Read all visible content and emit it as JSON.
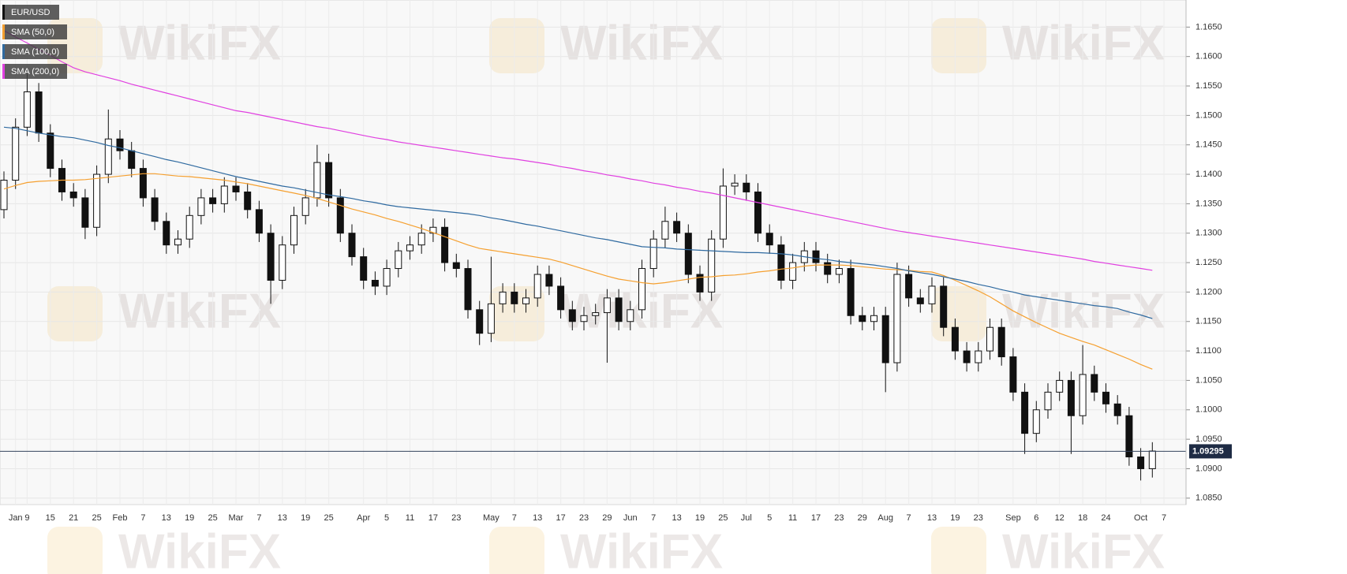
{
  "chart_data": {
    "type": "candlestick",
    "name": "EUR/USD",
    "color": "#111111",
    "up_color": "#ffffff",
    "legend": "top-left",
    "grid": true,
    "watermark": "WikiFX",
    "categories": [
      null,
      "Jan",
      "9",
      null,
      "15",
      null,
      "21",
      null,
      "25",
      null,
      "Feb",
      null,
      "7",
      null,
      "13",
      null,
      "19",
      null,
      "25",
      null,
      "Mar",
      null,
      "7",
      null,
      "13",
      null,
      "19",
      null,
      "25",
      null,
      null,
      "Apr",
      null,
      "5",
      null,
      "11",
      null,
      "17",
      null,
      "23",
      null,
      null,
      "May",
      null,
      "7",
      null,
      "13",
      null,
      "17",
      null,
      "23",
      null,
      "29",
      null,
      "Jun",
      null,
      "7",
      null,
      "13",
      null,
      "19",
      null,
      "25",
      null,
      "Jul",
      null,
      "5",
      null,
      "11",
      null,
      "17",
      null,
      "23",
      null,
      "29",
      null,
      "Aug",
      null,
      "7",
      null,
      "13",
      null,
      "19",
      null,
      "23",
      null,
      null,
      "Sep",
      null,
      "6",
      null,
      "12",
      null,
      "18",
      null,
      "24",
      null,
      null,
      "Oct",
      null,
      "7"
    ],
    "open": [
      1.134,
      1.139,
      1.148,
      1.154,
      1.147,
      1.141,
      1.137,
      1.136,
      1.131,
      1.14,
      1.146,
      1.144,
      1.141,
      1.136,
      1.132,
      1.128,
      1.129,
      1.133,
      1.136,
      1.135,
      1.138,
      1.137,
      1.134,
      1.13,
      1.122,
      1.128,
      1.133,
      1.136,
      1.142,
      1.136,
      1.13,
      1.126,
      1.122,
      1.121,
      1.124,
      1.127,
      1.128,
      1.13,
      1.131,
      1.125,
      1.124,
      1.117,
      1.113,
      1.118,
      1.12,
      1.118,
      1.119,
      1.123,
      1.121,
      1.117,
      1.115,
      1.116,
      1.1165,
      1.119,
      1.115,
      1.117,
      1.124,
      1.129,
      1.132,
      1.13,
      1.123,
      1.12,
      1.129,
      1.138,
      1.1385,
      1.137,
      1.13,
      1.128,
      1.122,
      1.125,
      1.127,
      1.125,
      1.123,
      1.124,
      1.116,
      1.115,
      1.116,
      1.108,
      1.123,
      1.119,
      1.118,
      1.121,
      1.114,
      1.11,
      1.108,
      1.11,
      1.114,
      1.109,
      1.103,
      1.096,
      1.1,
      1.103,
      1.105,
      1.099,
      1.106,
      1.103,
      1.101,
      1.099,
      1.092,
      1.09,
      null
    ],
    "high": [
      1.1405,
      1.1495,
      1.157,
      1.1555,
      1.1485,
      1.1425,
      1.1385,
      1.1375,
      1.1415,
      1.151,
      1.1475,
      1.1455,
      1.1425,
      1.1375,
      1.1335,
      1.1305,
      1.1345,
      1.1375,
      1.1375,
      1.1395,
      1.1395,
      1.1385,
      1.1355,
      1.1315,
      1.1295,
      1.1345,
      1.1375,
      1.145,
      1.1435,
      1.1375,
      1.1315,
      1.1275,
      1.1235,
      1.1255,
      1.1285,
      1.1295,
      1.1315,
      1.1325,
      1.1325,
      1.1265,
      1.1255,
      1.1185,
      1.126,
      1.1215,
      1.1215,
      1.1205,
      1.1245,
      1.1245,
      1.1225,
      1.1185,
      1.1175,
      1.118,
      1.1205,
      1.1205,
      1.1185,
      1.1255,
      1.1305,
      1.1345,
      1.1335,
      1.1315,
      1.1245,
      1.1305,
      1.141,
      1.14,
      1.14,
      1.1385,
      1.1315,
      1.1295,
      1.1265,
      1.1285,
      1.1285,
      1.1265,
      1.1255,
      1.1255,
      1.1175,
      1.1175,
      1.1175,
      1.125,
      1.1245,
      1.1205,
      1.1225,
      1.1225,
      1.1155,
      1.1115,
      1.1115,
      1.1155,
      1.1155,
      1.1105,
      1.1045,
      1.1015,
      1.1045,
      1.1065,
      1.1065,
      1.111,
      1.1075,
      1.1045,
      1.1025,
      1.1005,
      1.0935,
      1.0945,
      null
    ],
    "low": [
      1.1325,
      1.1375,
      1.1465,
      1.1455,
      1.1395,
      1.1355,
      1.1345,
      1.129,
      1.1295,
      1.1385,
      1.1425,
      1.1395,
      1.1345,
      1.1305,
      1.1265,
      1.1265,
      1.1275,
      1.1315,
      1.1335,
      1.1335,
      1.1355,
      1.1325,
      1.1285,
      1.118,
      1.1205,
      1.1265,
      1.1315,
      1.1345,
      1.1345,
      1.1285,
      1.1245,
      1.1205,
      1.1195,
      1.1195,
      1.1225,
      1.1255,
      1.1265,
      1.1285,
      1.1235,
      1.1225,
      1.1155,
      1.111,
      1.1115,
      1.1165,
      1.1165,
      1.1165,
      1.1175,
      1.1195,
      1.1155,
      1.1135,
      1.1135,
      1.1145,
      1.108,
      1.1135,
      1.1135,
      1.1155,
      1.1225,
      1.1275,
      1.1285,
      1.1215,
      1.1185,
      1.1185,
      1.1275,
      1.1365,
      1.1355,
      1.1285,
      1.1265,
      1.1205,
      1.1205,
      1.1235,
      1.1235,
      1.1215,
      1.1215,
      1.1145,
      1.1135,
      1.1135,
      1.103,
      1.1065,
      1.1175,
      1.1165,
      1.1165,
      1.1125,
      1.1085,
      1.1065,
      1.1065,
      1.1085,
      1.1075,
      1.1015,
      1.0925,
      1.0945,
      1.0985,
      1.1015,
      1.0925,
      1.0975,
      1.1015,
      1.0995,
      1.0975,
      1.0905,
      1.088,
      1.0885,
      null
    ],
    "close": [
      1.139,
      1.148,
      1.154,
      1.147,
      1.141,
      1.137,
      1.136,
      1.131,
      1.14,
      1.146,
      1.144,
      1.141,
      1.136,
      1.132,
      1.128,
      1.129,
      1.133,
      1.136,
      1.135,
      1.138,
      1.137,
      1.134,
      1.13,
      1.122,
      1.128,
      1.133,
      1.136,
      1.142,
      1.136,
      1.13,
      1.126,
      1.122,
      1.121,
      1.124,
      1.127,
      1.128,
      1.13,
      1.131,
      1.125,
      1.124,
      1.117,
      1.113,
      1.118,
      1.12,
      1.118,
      1.119,
      1.123,
      1.121,
      1.117,
      1.115,
      1.116,
      1.1165,
      1.119,
      1.115,
      1.117,
      1.124,
      1.129,
      1.132,
      1.13,
      1.123,
      1.12,
      1.129,
      1.138,
      1.1385,
      1.137,
      1.13,
      1.128,
      1.122,
      1.125,
      1.127,
      1.125,
      1.123,
      1.124,
      1.116,
      1.115,
      1.116,
      1.108,
      1.123,
      1.119,
      1.118,
      1.121,
      1.114,
      1.11,
      1.108,
      1.11,
      1.114,
      1.109,
      1.103,
      1.096,
      1.1,
      1.103,
      1.105,
      1.099,
      1.106,
      1.103,
      1.101,
      1.099,
      1.092,
      1.09,
      1.093,
      null
    ],
    "series": [
      {
        "name": "SMA (50,0)",
        "color": "#f5a030",
        "values": [
          1.1375,
          1.1381,
          1.1386,
          1.1388,
          1.1389,
          1.139,
          1.139,
          1.1391,
          1.1393,
          1.1395,
          1.1397,
          1.1399,
          1.1401,
          1.1401,
          1.1399,
          1.1397,
          1.1396,
          1.1394,
          1.1392,
          1.139,
          1.1387,
          1.1384,
          1.138,
          1.1376,
          1.1372,
          1.1368,
          1.1364,
          1.1359,
          1.1353,
          1.1347,
          1.1341,
          1.1336,
          1.1331,
          1.1325,
          1.132,
          1.1314,
          1.1308,
          1.1301,
          1.1294,
          1.1287,
          1.128,
          1.1274,
          1.1271,
          1.1268,
          1.1265,
          1.1262,
          1.1259,
          1.1256,
          1.1251,
          1.1245,
          1.1239,
          1.1233,
          1.1227,
          1.1222,
          1.1219,
          1.1216,
          1.1214,
          1.1216,
          1.1219,
          1.1222,
          1.1225,
          1.1226,
          1.1228,
          1.1229,
          1.1231,
          1.1234,
          1.1236,
          1.1239,
          1.1241,
          1.1244,
          1.1246,
          1.1246,
          1.1246,
          1.1245,
          1.1243,
          1.1241,
          1.1239,
          1.1238,
          1.1237,
          1.1235,
          1.1234,
          1.1228,
          1.122,
          1.1211,
          1.1202,
          1.1192,
          1.118,
          1.1168,
          1.1158,
          1.1148,
          1.1139,
          1.113,
          1.1123,
          1.1116,
          1.111,
          1.1102,
          1.1094,
          1.1086,
          1.1077,
          1.1069,
          null
        ]
      },
      {
        "name": "SMA (100,0)",
        "color": "#2f6aa0",
        "values": [
          1.148,
          1.1478,
          1.1474,
          1.147,
          1.1467,
          1.1464,
          1.1462,
          1.1458,
          1.1454,
          1.1449,
          1.1445,
          1.144,
          1.1435,
          1.143,
          1.1425,
          1.1421,
          1.1416,
          1.1411,
          1.1406,
          1.1401,
          1.1396,
          1.1392,
          1.1388,
          1.1384,
          1.138,
          1.1377,
          1.1373,
          1.1369,
          1.1365,
          1.1362,
          1.1359,
          1.1355,
          1.1352,
          1.1348,
          1.1345,
          1.1343,
          1.1341,
          1.1339,
          1.1337,
          1.1335,
          1.1333,
          1.133,
          1.1326,
          1.1323,
          1.1319,
          1.1315,
          1.1312,
          1.1308,
          1.1304,
          1.13,
          1.1296,
          1.1292,
          1.1289,
          1.1285,
          1.1281,
          1.1277,
          1.1276,
          1.1275,
          1.1273,
          1.1272,
          1.1271,
          1.127,
          1.1269,
          1.1268,
          1.1267,
          1.1267,
          1.1266,
          1.1265,
          1.1263,
          1.126,
          1.1257,
          1.1255,
          1.1252,
          1.125,
          1.1248,
          1.1246,
          1.1243,
          1.124,
          1.1236,
          1.1233,
          1.123,
          1.1226,
          1.1222,
          1.1218,
          1.1213,
          1.1209,
          1.1204,
          1.12,
          1.1195,
          1.1192,
          1.1189,
          1.1186,
          1.1183,
          1.118,
          1.1177,
          1.1175,
          1.1172,
          1.1166,
          1.1161,
          1.1155,
          null
        ]
      },
      {
        "name": "SMA (200,0)",
        "color": "#e040e0",
        "values": [
          1.1644,
          1.1633,
          1.1623,
          1.1612,
          1.1602,
          1.1591,
          1.1581,
          1.1574,
          1.1569,
          1.1564,
          1.1559,
          1.1553,
          1.1548,
          1.1543,
          1.1538,
          1.1533,
          1.1528,
          1.1523,
          1.1518,
          1.1513,
          1.1508,
          1.1505,
          1.1501,
          1.1497,
          1.1493,
          1.1489,
          1.1485,
          1.1481,
          1.1478,
          1.1474,
          1.147,
          1.1466,
          1.1462,
          1.1459,
          1.1455,
          1.1452,
          1.1449,
          1.1446,
          1.1443,
          1.144,
          1.1437,
          1.1434,
          1.1431,
          1.1428,
          1.1426,
          1.1423,
          1.142,
          1.1417,
          1.1413,
          1.141,
          1.1406,
          1.1403,
          1.1399,
          1.1396,
          1.1392,
          1.1389,
          1.1385,
          1.1382,
          1.1378,
          1.1375,
          1.1371,
          1.1368,
          1.1364,
          1.136,
          1.1356,
          1.1352,
          1.1348,
          1.1344,
          1.134,
          1.1336,
          1.1332,
          1.1328,
          1.1324,
          1.132,
          1.1316,
          1.1312,
          1.1308,
          1.1304,
          1.1301,
          1.1298,
          1.1295,
          1.1292,
          1.1289,
          1.1286,
          1.1283,
          1.128,
          1.1277,
          1.1274,
          1.1271,
          1.1268,
          1.1265,
          1.1262,
          1.1259,
          1.1256,
          1.1252,
          1.1249,
          1.1246,
          1.1243,
          1.124,
          1.1237,
          null
        ]
      }
    ],
    "ylim": [
      1.0839,
      1.1696
    ],
    "yticks": [
      {
        "value": 1.085,
        "label": "1.0850"
      },
      {
        "value": 1.09,
        "label": "1.0900"
      },
      {
        "value": 1.095,
        "label": "1.0950"
      },
      {
        "value": 1.1,
        "label": "1.1000"
      },
      {
        "value": 1.105,
        "label": "1.1050"
      },
      {
        "value": 1.11,
        "label": "1.1100"
      },
      {
        "value": 1.115,
        "label": "1.1150"
      },
      {
        "value": 1.12,
        "label": "1.1200"
      },
      {
        "value": 1.125,
        "label": "1.1250"
      },
      {
        "value": 1.13,
        "label": "1.1300"
      },
      {
        "value": 1.135,
        "label": "1.1350"
      },
      {
        "value": 1.14,
        "label": "1.1400"
      },
      {
        "value": 1.145,
        "label": "1.1450"
      },
      {
        "value": 1.15,
        "label": "1.1500"
      },
      {
        "value": 1.155,
        "label": "1.1550"
      },
      {
        "value": 1.16,
        "label": "1.1600"
      },
      {
        "value": 1.165,
        "label": "1.1650"
      }
    ],
    "last_price": {
      "value": 1.09295,
      "label": "1.09295"
    }
  }
}
